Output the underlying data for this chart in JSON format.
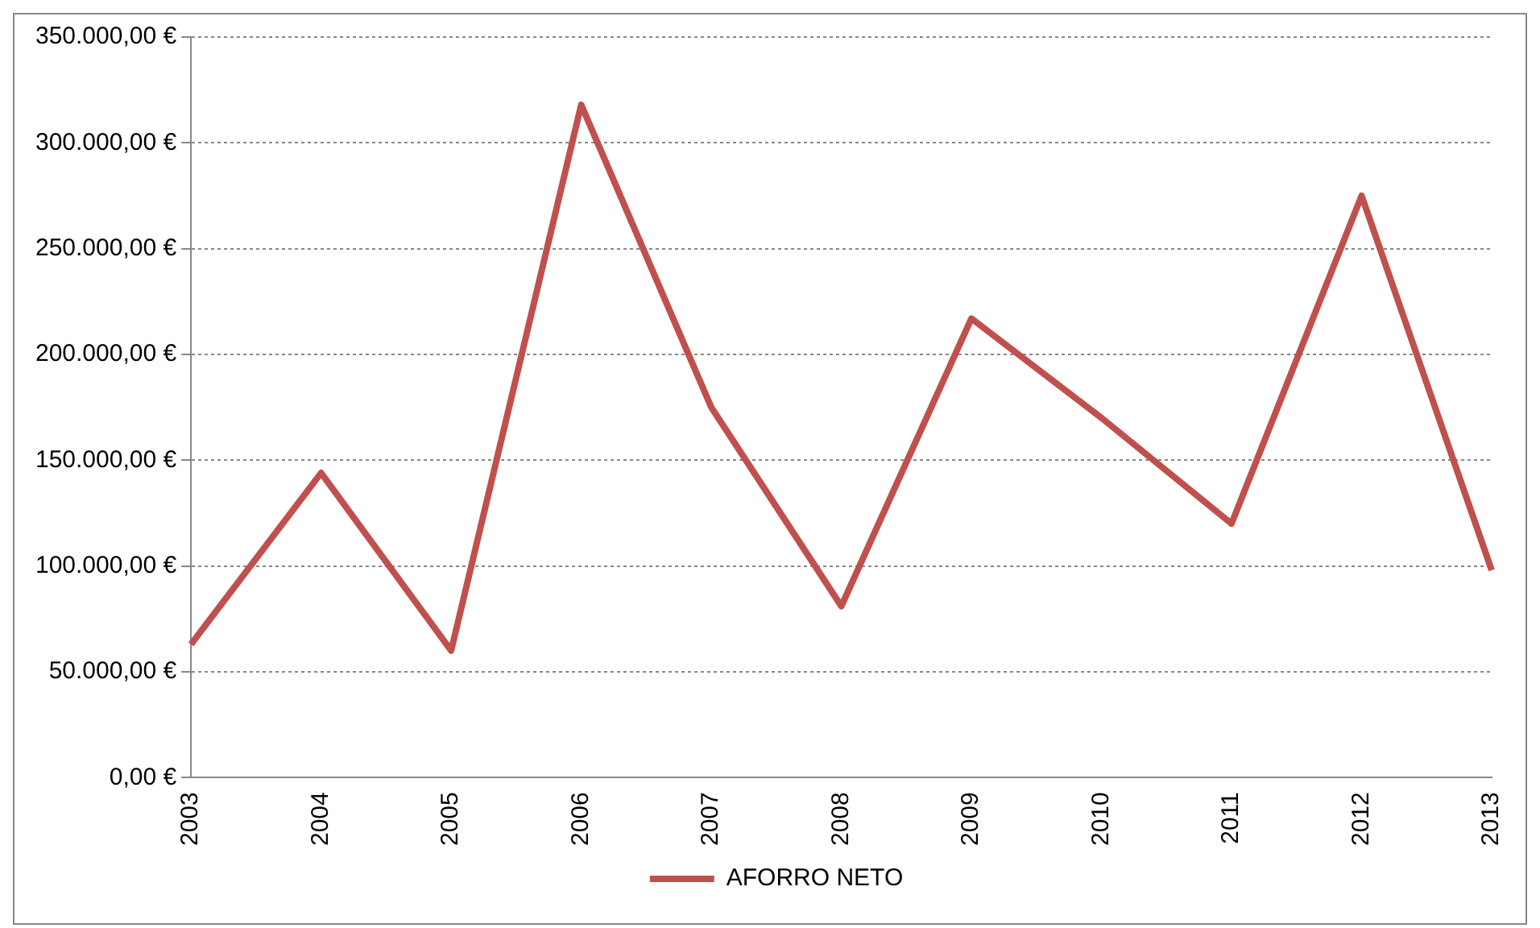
{
  "chart_data": {
    "type": "line",
    "categories": [
      "2003",
      "2004",
      "2005",
      "2006",
      "2007",
      "2008",
      "2009",
      "2010",
      "2011",
      "2012",
      "2013"
    ],
    "series": [
      {
        "name": "AFORRO NETO",
        "color": "#c0504d",
        "values": [
          63000,
          144000,
          60000,
          318000,
          175000,
          81000,
          217000,
          170000,
          120000,
          275000,
          98000
        ]
      }
    ],
    "ylim": [
      0,
      350000
    ],
    "yticks": [
      {
        "value": 0,
        "label": "0,00 €"
      },
      {
        "value": 50000,
        "label": "50.000,00 €"
      },
      {
        "value": 100000,
        "label": "100.000,00 €"
      },
      {
        "value": 150000,
        "label": "150.000,00 €"
      },
      {
        "value": 200000,
        "label": "200.000,00 €"
      },
      {
        "value": 250000,
        "label": "250.000,00 €"
      },
      {
        "value": 300000,
        "label": "300.000,00 €"
      },
      {
        "value": 350000,
        "label": "350.000,00 €"
      }
    ],
    "grid": "y",
    "legend": "bottom",
    "marker": "none",
    "line_style": "solid"
  }
}
